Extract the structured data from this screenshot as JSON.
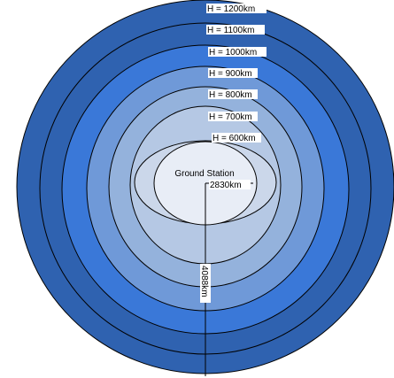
{
  "diagram": {
    "center_label": "Ground Station",
    "rings": [
      {
        "label": "H = 1200km",
        "color": "#2f62b0"
      },
      {
        "label": "H = 1100km",
        "color": "#2f62b0"
      },
      {
        "label": "H = 1000km",
        "color": "#3a78d8"
      },
      {
        "label": "H = 900km",
        "color": "#6f99d8"
      },
      {
        "label": "H = 800km",
        "color": "#94b2dc"
      },
      {
        "label": "H = 700km",
        "color": "#b5c8e4"
      },
      {
        "label": "H = 600km",
        "color": "#cbd7ea"
      }
    ],
    "center_color": "#e8edf6",
    "horizontal_measure": "2830km",
    "vertical_measure": "4088km"
  }
}
